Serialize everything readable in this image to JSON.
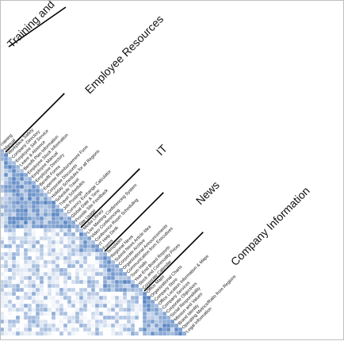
{
  "chart_data": {
    "type": "heatmap",
    "title": "",
    "color_low": "#ffffff",
    "color_high": "#2f66b3",
    "groups": [
      {
        "name": "Training and",
        "items": [
          "Training",
          "Manual"
        ]
      },
      {
        "name": "Employee Resources",
        "items": [
          "Workplace Safety",
          "Company Directory",
          "Employee Self Service",
          "Leave & Absence",
          "Benefit Plan Information",
          "Employee Stock Information",
          "Employee Manual",
          "Employee Directory",
          "Benefit Forms",
          "Expense Reimbursement Form",
          "Corporate Discounts",
          "Holiday Schedules for all Regions",
          "Schedule Travel",
          "Travel Schedules",
          "Job Postings",
          "Currency Exchange Calculator",
          "Global Date & Time",
          "Provide Site Feedback",
          "Site Usage"
        ]
      },
      {
        "name": "IT",
        "items": [
          "Media Library",
          "Live Meeting Conferencing System",
          "Video Conferencing",
          "Conference Room Scheduling",
          "IT Help Desk",
          "Forms"
        ]
      },
      {
        "name": "News",
        "items": [
          "Templates",
          "Regional News",
          "Submit News Article Idea",
          "Corporate Archive",
          "Organizational Announcements",
          "Communication from Executives",
          "Town Halls",
          "Year-End Board Reports",
          "Stock and Commodity Prices",
          "Corporate Calendar"
        ]
      },
      {
        "name": "Company Information",
        "items": [
          "Office Maps",
          "Organizational Charts",
          "Company Store",
          "Office Location Information & Maps",
          "Company Services",
          "Corporate Objectives",
          "Social Responsibility",
          "Mission and Values",
          "Brand Identity",
          "Operating Metrics/Ratio from Regions",
          "Legal Information"
        ]
      }
    ]
  }
}
